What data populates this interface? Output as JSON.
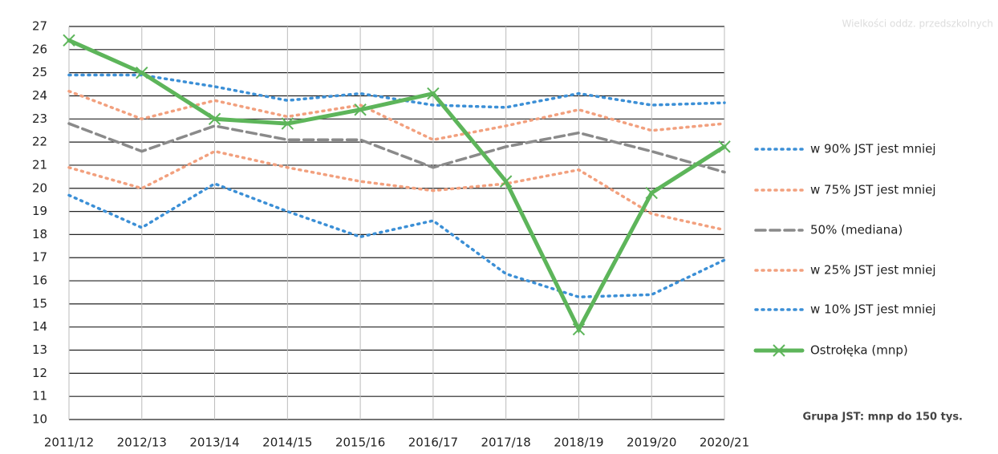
{
  "chart_data": {
    "type": "line",
    "title": "Wielkości oddz. przedszkolnych",
    "annotation": "Grupa JST: mnp do 150 tys.",
    "categories": [
      "2011/12",
      "2012/13",
      "2013/14",
      "2014/15",
      "2015/16",
      "2016/17",
      "2017/18",
      "2018/19",
      "2019/20",
      "2020/21"
    ],
    "ylim": [
      10,
      27
    ],
    "yticks": [
      10,
      11,
      12,
      13,
      14,
      15,
      16,
      17,
      18,
      19,
      20,
      21,
      22,
      23,
      24,
      25,
      26,
      27
    ],
    "grid": true,
    "legend": "right",
    "series": [
      {
        "name": "w 90% JST jest mniej",
        "color": "#3b8fd6",
        "dash": "dotted",
        "values": [
          24.9,
          24.9,
          24.4,
          23.8,
          24.1,
          23.6,
          23.5,
          24.1,
          23.6,
          23.7
        ]
      },
      {
        "name": "w 75% JST jest mniej",
        "color": "#f2a07e",
        "dash": "dotted",
        "values": [
          24.2,
          23.0,
          23.8,
          23.1,
          23.6,
          22.1,
          22.7,
          23.4,
          22.5,
          22.8
        ]
      },
      {
        "name": "50% (mediana)",
        "color": "#8a8a8a",
        "dash": "dashed",
        "values": [
          22.8,
          21.6,
          22.7,
          22.1,
          22.1,
          20.9,
          21.8,
          22.4,
          21.6,
          20.7
        ]
      },
      {
        "name": "w 25% JST jest mniej",
        "color": "#f2a07e",
        "dash": "dotted",
        "values": [
          20.9,
          20.0,
          21.6,
          20.9,
          20.3,
          19.9,
          20.2,
          20.8,
          18.9,
          18.2
        ]
      },
      {
        "name": "w 10% JST jest mniej",
        "color": "#3b8fd6",
        "dash": "dotted",
        "values": [
          19.7,
          18.3,
          20.2,
          19.0,
          17.9,
          18.6,
          16.3,
          15.3,
          15.4,
          16.9
        ]
      },
      {
        "name": "Ostrołęka (mnp)",
        "color": "#5db55a",
        "dash": "solid",
        "marker": "x",
        "values": [
          26.4,
          25.0,
          23.0,
          22.8,
          23.4,
          24.1,
          20.3,
          13.9,
          19.8,
          21.8
        ]
      }
    ]
  }
}
